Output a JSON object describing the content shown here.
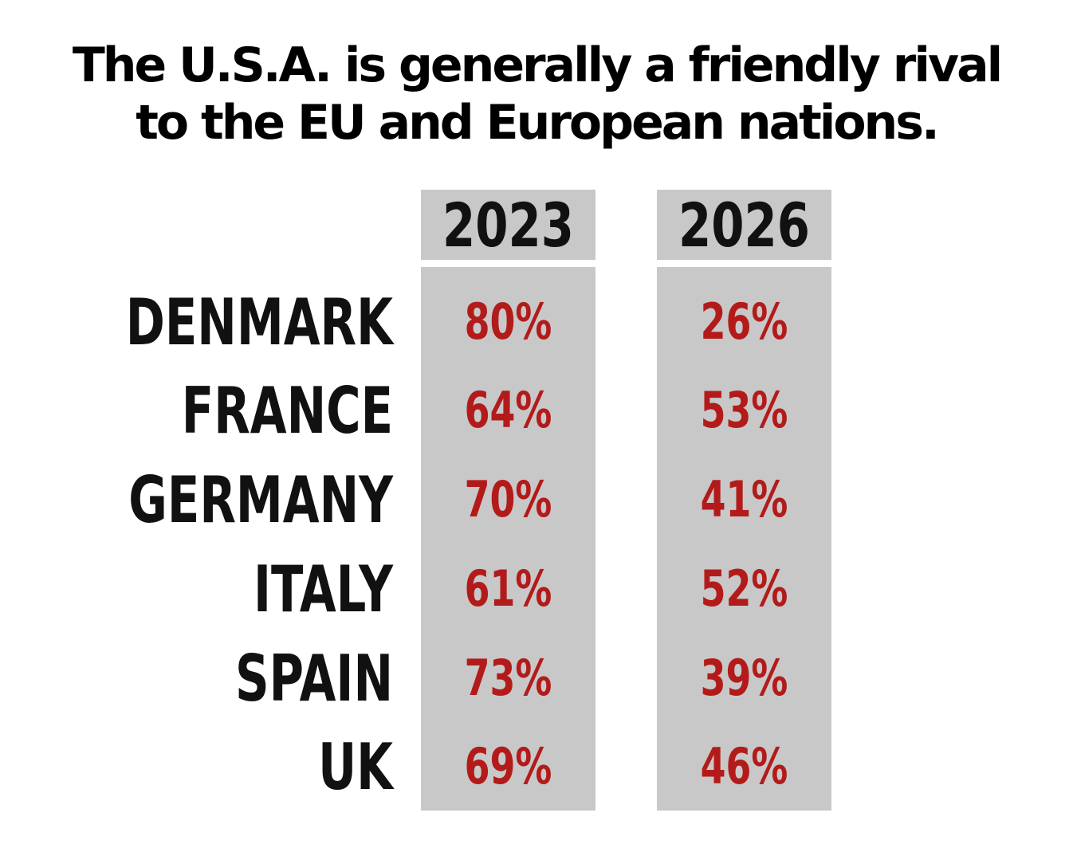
{
  "title_lines": [
    "The U.S.A. is generally a friendly rival",
    "to the EU and European nations."
  ],
  "colors": {
    "background": "#ffffff",
    "column_fill": "#c8c8c8",
    "label_text": "#111111",
    "value_text": "#b31b1b"
  },
  "chart_data": {
    "type": "table",
    "title": "The U.S.A. is generally a friendly rival to the EU and European nations.",
    "columns": [
      "2023",
      "2026"
    ],
    "rows": [
      "DENMARK",
      "FRANCE",
      "GERMANY",
      "ITALY",
      "SPAIN",
      "UK"
    ],
    "series": [
      {
        "name": "2023",
        "values": [
          80,
          64,
          70,
          61,
          73,
          69
        ]
      },
      {
        "name": "2026",
        "values": [
          26,
          53,
          41,
          52,
          39,
          46
        ]
      }
    ],
    "value_labels": [
      [
        "80%",
        "26%"
      ],
      [
        "64%",
        "53%"
      ],
      [
        "70%",
        "41%"
      ],
      [
        "61%",
        "52%"
      ],
      [
        "73%",
        "39%"
      ],
      [
        "69%",
        "46%"
      ]
    ],
    "unit": "%"
  }
}
